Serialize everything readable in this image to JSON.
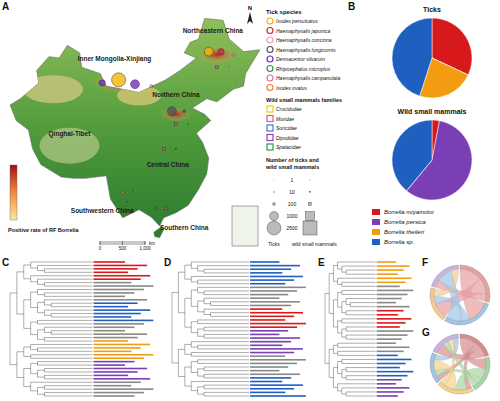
{
  "panel_labels": [
    "A",
    "B",
    "C",
    "D",
    "E",
    "F",
    "G"
  ],
  "map": {
    "regions": [
      "Inner Mongolia-Xinjiang",
      "Northeastern China",
      "Qinghai-Tibet",
      "Northern China",
      "Central China",
      "Southwestern China",
      "Southern China"
    ],
    "north": "N",
    "colorbar_title": "Positive rate of RF Borrelia",
    "scale_ticks": [
      0,
      500,
      {
        "value": 1000,
        "label": "1,000"
      }
    ],
    "scale_unit": "km",
    "tick_legend_title": "Tick species",
    "tick_species": [
      {
        "name": "Ixodes persulcatus",
        "color": "#f2b705"
      },
      {
        "name": "Haemaphysalis japonica",
        "color": "#d7263d"
      },
      {
        "name": "Haemaphysalis concinna",
        "color": "#f4a3b5"
      },
      {
        "name": "Haemaphysalis longicornis",
        "color": "#555555"
      },
      {
        "name": "Dermacentor silvarum",
        "color": "#7b2cbf"
      },
      {
        "name": "Rhipicephalus microplus",
        "color": "#2a9d3f"
      },
      {
        "name": "Haemaphysalis campanulata",
        "color": "#e76fb1"
      },
      {
        "name": "Ixodes ovatus",
        "color": "#f4812a"
      }
    ],
    "mammal_legend_title": "Wild small mammals families",
    "mammal_families": [
      {
        "name": "Crocidudae",
        "color": "#f2d000"
      },
      {
        "name": "Muridae",
        "color": "#e05a8a"
      },
      {
        "name": "Soricidae",
        "color": "#3a7bd5"
      },
      {
        "name": "Dipodidae",
        "color": "#8e44ad"
      },
      {
        "name": "Spalacidae",
        "color": "#2a9d3f"
      }
    ],
    "size_legend_title": "Number of ticks and wild small mammals",
    "sizes": [
      1,
      10,
      100,
      1000,
      2500
    ],
    "size_row_labels": [
      "Ticks",
      "wild small mammals"
    ],
    "tick_sites": [
      {
        "lon": 96,
        "lat": 43,
        "species": 4,
        "count": 500
      },
      {
        "lon": 100,
        "lat": 43.5,
        "species": 0,
        "count": 2500
      },
      {
        "lon": 104,
        "lat": 42.8,
        "species": 4,
        "count": 1000
      },
      {
        "lon": 108,
        "lat": 42.5,
        "species": 2,
        "count": 100
      },
      {
        "lon": 122,
        "lat": 48,
        "species": 0,
        "count": 1000
      },
      {
        "lon": 125,
        "lat": 48,
        "species": 1,
        "count": 500
      },
      {
        "lon": 128,
        "lat": 47.5,
        "species": 2,
        "count": 100
      },
      {
        "lon": 113,
        "lat": 38.5,
        "species": 3,
        "count": 1000
      },
      {
        "lon": 116,
        "lat": 38.5,
        "species": 3,
        "count": 100
      },
      {
        "lon": 101,
        "lat": 25.5,
        "species": 7,
        "count": 100
      },
      {
        "lon": 103.5,
        "lat": 25.8,
        "species": 6,
        "count": 10
      },
      {
        "lon": 109,
        "lat": 23,
        "species": 5,
        "count": 100
      }
    ],
    "mammal_sites": [
      {
        "lon": 124,
        "lat": 45.5,
        "family": 1,
        "count": 100
      },
      {
        "lon": 127,
        "lat": 45.5,
        "family": 0,
        "count": 10
      },
      {
        "lon": 114,
        "lat": 36.5,
        "family": 1,
        "count": 100
      },
      {
        "lon": 117,
        "lat": 36.5,
        "family": 2,
        "count": 10
      },
      {
        "lon": 111,
        "lat": 41,
        "family": 3,
        "count": 10
      },
      {
        "lon": 111,
        "lat": 32.5,
        "family": 1,
        "count": 100
      },
      {
        "lon": 114,
        "lat": 32.5,
        "family": 4,
        "count": 10
      },
      {
        "lon": 102,
        "lat": 24,
        "family": 0,
        "count": 10
      },
      {
        "lon": 111.5,
        "lat": 23,
        "family": 1,
        "count": 100
      }
    ]
  },
  "chart_data": [
    {
      "type": "pie",
      "title": "Ticks",
      "categories": [
        "Borrelia miyamotoi",
        "Borrelia persica",
        "Borrelia theileri",
        "Borrelia sp."
      ],
      "values": [
        32,
        0,
        23,
        45
      ],
      "colors": [
        "#d7191c",
        "#7b3fb5",
        "#f39c12",
        "#1f5fbf"
      ]
    },
    {
      "type": "pie",
      "title": "Wild small mammals",
      "categories": [
        "Borrelia miyamotoi",
        "Borrelia persica",
        "Borrelia theileri",
        "Borrelia sp."
      ],
      "values": [
        3,
        58,
        0,
        39
      ],
      "colors": [
        "#d7191c",
        "#7b3fb5",
        "#f39c12",
        "#1f5fbf"
      ]
    }
  ],
  "chords": [
    {
      "matrix": [
        [
          0,
          3,
          2,
          1
        ],
        [
          3,
          0,
          1,
          2
        ],
        [
          2,
          1,
          0,
          1
        ],
        [
          1,
          2,
          1,
          0
        ]
      ],
      "colors": [
        "#e8a0a0",
        "#9fc5e8",
        "#f6c98f",
        "#c9b3e6"
      ]
    },
    {
      "matrix": [
        [
          0,
          2,
          1,
          1,
          2
        ],
        [
          2,
          0,
          2,
          1,
          1
        ],
        [
          1,
          2,
          0,
          2,
          1
        ],
        [
          1,
          1,
          2,
          0,
          1
        ],
        [
          2,
          1,
          1,
          1,
          0
        ]
      ],
      "colors": [
        "#d98c8c",
        "#a6d6a0",
        "#f3d38a",
        "#9fc5e8",
        "#c9b3e6"
      ]
    }
  ]
}
